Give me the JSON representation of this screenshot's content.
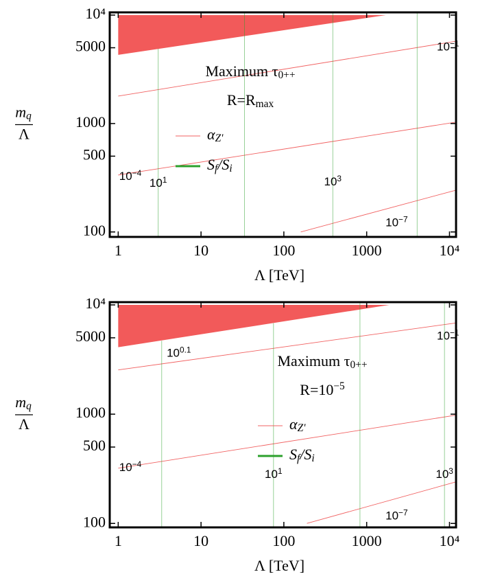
{
  "chart_data": [
    {
      "type": "contour-lines",
      "log_x": true,
      "log_y": true,
      "xlim": [
        0.79,
        12000
      ],
      "ylim": [
        90,
        10600
      ],
      "xticks": [
        1,
        10,
        100,
        1000,
        {
          "value": 10000,
          "label": "10⁴"
        }
      ],
      "yticks": [
        100,
        500,
        1000,
        5000,
        {
          "value": 10000,
          "label": "10⁴"
        }
      ],
      "x_label": "Λ [TeV]",
      "y_label": {
        "numerator": [
          {
            "text": "m"
          },
          {
            "text": "q",
            "sub": true
          }
        ],
        "denominator": "Λ"
      },
      "annotation": [
        [
          {
            "text": "Maximum τ"
          },
          {
            "text": "0++",
            "sub": true
          }
        ],
        [
          {
            "text": "R"
          },
          {
            "text": "="
          },
          {
            "text": "R"
          },
          {
            "text": "max",
            "sub": true
          }
        ]
      ],
      "region": {
        "color": "#f25a5a",
        "x": [
          1,
          1,
          1700
        ],
        "values": [
          10000,
          4300,
          10000
        ]
      },
      "series": [
        {
          "name": [
            {
              "text": "α"
            },
            {
              "text": "Z'",
              "sub": true
            }
          ],
          "color": "#f05050",
          "lines": [
            {
              "x": [
                1,
                12000
              ],
              "values": [
                1790,
                5740
              ],
              "label": [
                {
                  "text": "10"
                },
                {
                  "text": "−1",
                  "sup": true
                }
              ],
              "label_at": [
                9600,
                5000
              ]
            },
            {
              "x": [
                1,
                12000
              ],
              "values": [
                335,
                1030
              ],
              "label": [
                {
                  "text": "10"
                },
                {
                  "text": "−4",
                  "sup": true
                }
              ],
              "label_at": [
                1.4,
                320
              ]
            },
            {
              "x": [
                160,
                12000
              ],
              "values": [
                100,
                243
              ],
              "label": [
                {
                  "text": "10"
                },
                {
                  "text": "−7",
                  "sup": true
                }
              ],
              "label_at": [
                2300,
                120
              ]
            }
          ]
        },
        {
          "name": [
            {
              "text": "S"
            },
            {
              "text": "f",
              "sub": true
            },
            {
              "text": "/S"
            },
            {
              "text": "i",
              "sub": true
            }
          ],
          "color": "#2ca02c",
          "lines": [
            {
              "x": [
                3.04,
                3.04
              ],
              "values": [
                4900,
                90
              ],
              "label": [
                {
                  "text": "10"
                },
                {
                  "text": "1",
                  "sup": true
                }
              ],
              "label_at": [
                3.04,
                277
              ]
            },
            {
              "x": [
                33.5,
                33.5
              ],
              "values": [
                10600,
                90
              ]
            },
            {
              "x": [
                390,
                390
              ],
              "values": [
                10600,
                90
              ],
              "label": [
                {
                  "text": "10"
                },
                {
                  "text": "3",
                  "sup": true
                }
              ],
              "label_at": [
                390,
                285
              ]
            },
            {
              "x": [
                4070,
                4070
              ],
              "values": [
                10600,
                90
              ]
            }
          ]
        }
      ]
    },
    {
      "type": "contour-lines",
      "log_x": true,
      "log_y": true,
      "xlim": [
        0.79,
        12000
      ],
      "ylim": [
        92,
        10600
      ],
      "xticks": [
        1,
        10,
        100,
        1000,
        {
          "value": 10000,
          "label": "10⁴"
        }
      ],
      "yticks": [
        100,
        500,
        1000,
        5000,
        {
          "value": 10000,
          "label": "10⁴"
        }
      ],
      "x_label": "Λ [TeV]",
      "y_label": {
        "numerator": [
          {
            "text": "m"
          },
          {
            "text": "q",
            "sub": true
          }
        ],
        "denominator": "Λ"
      },
      "annotation": [
        [
          {
            "text": "Maximum τ"
          },
          {
            "text": "0++",
            "sub": true
          }
        ],
        [
          {
            "text": "R"
          },
          {
            "text": "=10"
          },
          {
            "text": "−5",
            "sup": true
          }
        ]
      ],
      "region": {
        "color": "#f25a5a",
        "x": [
          1,
          1,
          1880
        ],
        "values": [
          10000,
          4100,
          10000
        ]
      },
      "series": [
        {
          "name": [
            {
              "text": "α"
            },
            {
              "text": "Z'",
              "sub": true
            }
          ],
          "color": "#f05050",
          "lines": [
            {
              "x": [
                1,
                12000
              ],
              "values": [
                2540,
                6840
              ],
              "label": [
                {
                  "text": "10"
                },
                {
                  "text": "−1",
                  "sup": true
                }
              ],
              "label_at": [
                9600,
                5100
              ]
            },
            {
              "x": [
                1,
                12000
              ],
              "values": [
                320,
                980
              ],
              "label": [
                {
                  "text": "10"
                },
                {
                  "text": "−4",
                  "sup": true
                }
              ],
              "label_at": [
                1.4,
                320
              ]
            },
            {
              "x": [
                190,
                12000
              ],
              "values": [
                100,
                240
              ],
              "label": [
                {
                  "text": "10"
                },
                {
                  "text": "−7",
                  "sup": true
                }
              ],
              "label_at": [
                2300,
                115
              ]
            }
          ]
        },
        {
          "name": [
            {
              "text": "S"
            },
            {
              "text": "f",
              "sub": true
            },
            {
              "text": "/S"
            },
            {
              "text": "i",
              "sub": true
            }
          ],
          "color": "#2ca02c",
          "lines": [
            {
              "x": [
                3.35,
                3.35
              ],
              "values": [
                4700,
                92
              ],
              "label": [
                {
                  "text": "10"
                },
                {
                  "text": "0.1",
                  "sup": true
                }
              ],
              "label_at": [
                5.4,
                3550
              ]
            },
            {
              "x": [
                75,
                75
              ],
              "values": [
                6800,
                92
              ],
              "label": [
                {
                  "text": "10"
                },
                {
                  "text": "1",
                  "sup": true
                }
              ],
              "label_at": [
                75,
                277
              ]
            },
            {
              "x": [
                830,
                830
              ],
              "values": [
                10600,
                92
              ]
            },
            {
              "x": [
                8700,
                8700
              ],
              "values": [
                10600,
                92
              ],
              "label": [
                {
                  "text": "10"
                },
                {
                  "text": "3",
                  "sup": true
                }
              ],
              "label_at": [
                8700,
                277
              ]
            }
          ]
        }
      ]
    }
  ]
}
